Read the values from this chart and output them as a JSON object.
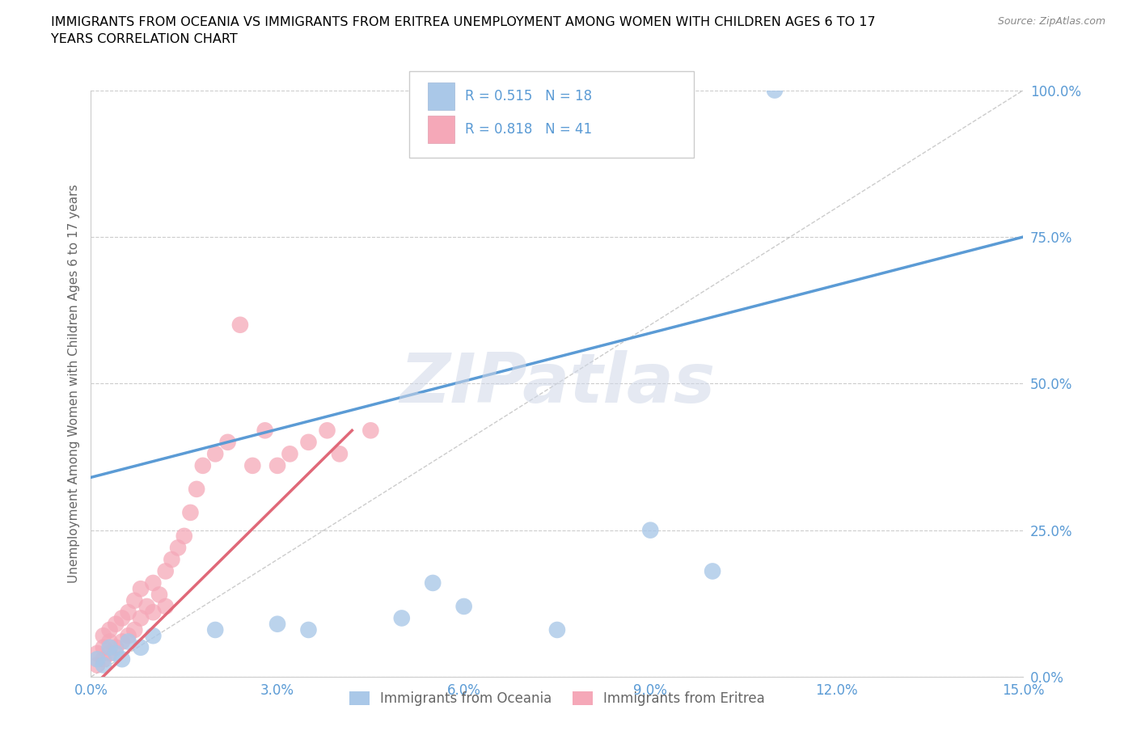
{
  "title_line1": "IMMIGRANTS FROM OCEANIA VS IMMIGRANTS FROM ERITREA UNEMPLOYMENT AMONG WOMEN WITH CHILDREN AGES 6 TO 17",
  "title_line2": "YEARS CORRELATION CHART",
  "source": "Source: ZipAtlas.com",
  "ylabel": "Unemployment Among Women with Children Ages 6 to 17 years",
  "xlim": [
    0.0,
    0.15
  ],
  "ylim": [
    0.0,
    1.0
  ],
  "yticks": [
    0.0,
    0.25,
    0.5,
    0.75,
    1.0
  ],
  "ytick_labels": [
    "0.0%",
    "25.0%",
    "50.0%",
    "75.0%",
    "100.0%"
  ],
  "xticks": [
    0.0,
    0.03,
    0.06,
    0.09,
    0.12,
    0.15
  ],
  "xtick_labels": [
    "0.0%",
    "3.0%",
    "6.0%",
    "9.0%",
    "12.0%",
    "15.0%"
  ],
  "R_oceania": 0.515,
  "N_oceania": 18,
  "R_eritrea": 0.818,
  "N_eritrea": 41,
  "oceania_scatter_color": "#aac8e8",
  "eritrea_scatter_color": "#f5a8b8",
  "oceania_line_color": "#5b9bd5",
  "eritrea_line_color": "#e06878",
  "tick_color": "#5b9bd5",
  "label_color": "#666666",
  "watermark_text": "ZIPatlas",
  "legend_label_oceania": "Immigrants from Oceania",
  "legend_label_eritrea": "Immigrants from Eritrea",
  "oceania_x": [
    0.001,
    0.002,
    0.003,
    0.004,
    0.005,
    0.006,
    0.008,
    0.01,
    0.02,
    0.03,
    0.035,
    0.05,
    0.055,
    0.06,
    0.075,
    0.09,
    0.1,
    0.11
  ],
  "oceania_y": [
    0.03,
    0.02,
    0.05,
    0.04,
    0.03,
    0.06,
    0.05,
    0.07,
    0.08,
    0.09,
    0.08,
    0.1,
    0.16,
    0.12,
    0.08,
    0.25,
    0.18,
    1.0
  ],
  "eritrea_x": [
    0.001,
    0.001,
    0.002,
    0.002,
    0.002,
    0.003,
    0.003,
    0.003,
    0.004,
    0.004,
    0.005,
    0.005,
    0.006,
    0.006,
    0.007,
    0.007,
    0.008,
    0.008,
    0.009,
    0.01,
    0.01,
    0.011,
    0.012,
    0.012,
    0.013,
    0.014,
    0.015,
    0.016,
    0.017,
    0.018,
    0.02,
    0.022,
    0.024,
    0.026,
    0.028,
    0.03,
    0.032,
    0.035,
    0.038,
    0.04,
    0.045
  ],
  "eritrea_y": [
    0.02,
    0.04,
    0.03,
    0.05,
    0.07,
    0.04,
    0.06,
    0.08,
    0.05,
    0.09,
    0.06,
    0.1,
    0.07,
    0.11,
    0.08,
    0.13,
    0.1,
    0.15,
    0.12,
    0.11,
    0.16,
    0.14,
    0.12,
    0.18,
    0.2,
    0.22,
    0.24,
    0.28,
    0.32,
    0.36,
    0.38,
    0.4,
    0.6,
    0.36,
    0.42,
    0.36,
    0.38,
    0.4,
    0.42,
    0.38,
    0.42
  ],
  "oceania_line_x": [
    0.0,
    0.15
  ],
  "oceania_line_y": [
    0.34,
    0.75
  ],
  "eritrea_line_x": [
    0.0,
    0.042
  ],
  "eritrea_line_y": [
    -0.02,
    0.42
  ]
}
